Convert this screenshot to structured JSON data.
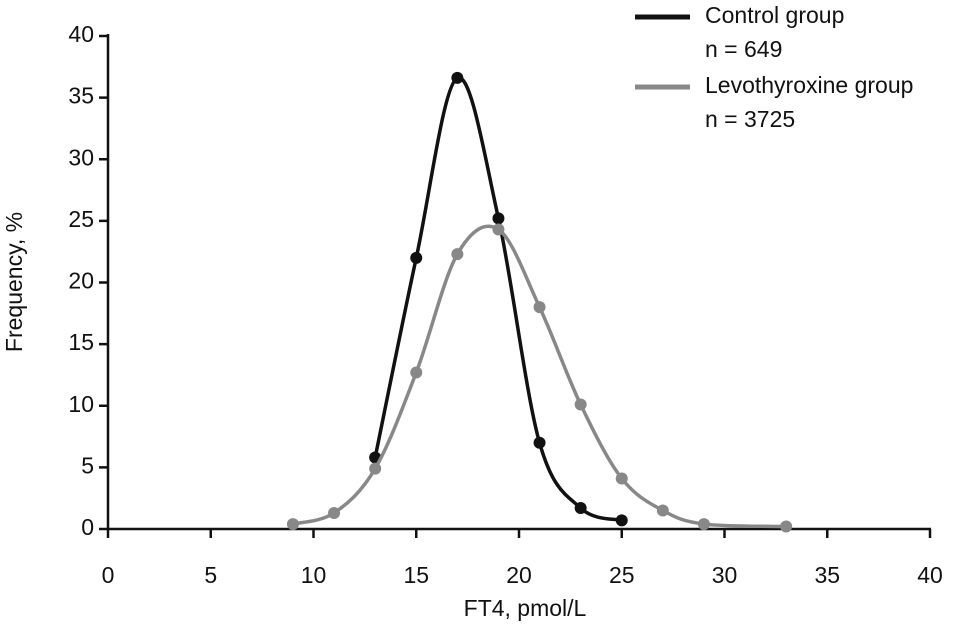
{
  "chart_data": {
    "type": "line",
    "x_label": "FT4, pmol/L",
    "y_label": "Frequency, %",
    "xlim": [
      0,
      40
    ],
    "xticks": [
      0,
      5,
      10,
      15,
      20,
      25,
      30,
      35,
      40
    ],
    "ylim": [
      0,
      40
    ],
    "yticks": [
      0,
      5,
      10,
      15,
      20,
      25,
      30,
      35,
      40
    ],
    "grid": false,
    "legend": "top-right",
    "series": [
      {
        "name": "Control group",
        "note": "n = 649",
        "color": "#111111",
        "x": [
          13,
          15,
          17,
          19,
          21,
          23,
          25
        ],
        "values": [
          5.8,
          22,
          36.6,
          25.2,
          7,
          1.7,
          0.7
        ]
      },
      {
        "name": "Levothyroxine group",
        "note": "n = 3725",
        "color": "#888888",
        "x": [
          9,
          11,
          13,
          15,
          17,
          19,
          21,
          23,
          25,
          27,
          29,
          33
        ],
        "values": [
          0.4,
          1.3,
          4.9,
          12.7,
          22.3,
          24.3,
          18,
          10.1,
          4.1,
          1.5,
          0.4,
          0.2
        ]
      }
    ]
  }
}
